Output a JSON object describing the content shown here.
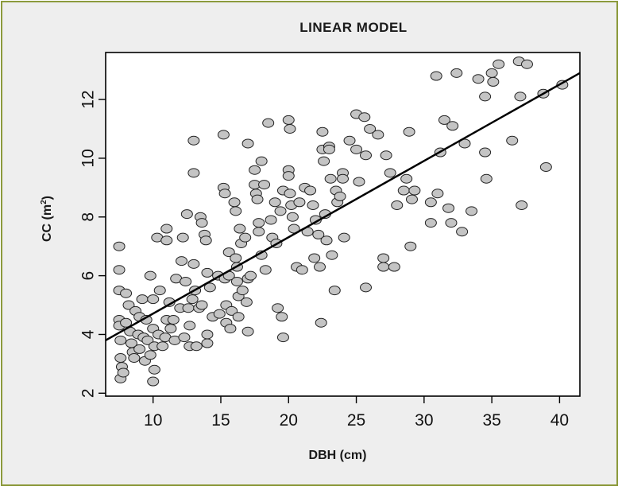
{
  "chart_data": {
    "type": "scatter",
    "title": "LINEAR MODEL",
    "xlabel": "DBH (cm)",
    "ylabel_main": "CC (m",
    "ylabel_sup": "2",
    "ylabel_close": ")",
    "xlim": [
      6.5,
      41.5
    ],
    "ylim": [
      1.9,
      13.6
    ],
    "x_ticks": [
      10,
      15,
      20,
      25,
      30,
      35,
      40
    ],
    "y_ticks": [
      2,
      4,
      6,
      8,
      10,
      12
    ],
    "grid": false,
    "legend": "none",
    "colors": {
      "point_fill": "#c4c4c4",
      "point_stroke": "#222222",
      "line": "#000000",
      "frame_border": "#8c9a3c",
      "background": "#eeeeee",
      "plot_bg": "#ffffff"
    },
    "fit_line": {
      "x": [
        6.5,
        41.5
      ],
      "y": [
        3.8,
        12.9
      ]
    },
    "points": [
      [
        7.5,
        7.0
      ],
      [
        7.5,
        6.2
      ],
      [
        7.5,
        5.5
      ],
      [
        7.5,
        4.5
      ],
      [
        7.5,
        4.3
      ],
      [
        7.6,
        3.8
      ],
      [
        7.6,
        3.2
      ],
      [
        7.7,
        2.9
      ],
      [
        7.6,
        2.5
      ],
      [
        7.8,
        2.7
      ],
      [
        8.0,
        5.4
      ],
      [
        8.2,
        5.0
      ],
      [
        8.0,
        4.4
      ],
      [
        8.3,
        4.1
      ],
      [
        8.4,
        3.7
      ],
      [
        8.5,
        3.4
      ],
      [
        8.6,
        3.2
      ],
      [
        8.7,
        4.8
      ],
      [
        8.9,
        4.0
      ],
      [
        9.0,
        3.5
      ],
      [
        9.0,
        4.6
      ],
      [
        9.2,
        5.2
      ],
      [
        9.3,
        3.9
      ],
      [
        9.4,
        3.1
      ],
      [
        9.5,
        4.5
      ],
      [
        9.6,
        3.8
      ],
      [
        9.8,
        6.0
      ],
      [
        9.8,
        3.3
      ],
      [
        10.0,
        5.2
      ],
      [
        10.0,
        4.2
      ],
      [
        10.0,
        2.4
      ],
      [
        10.1,
        2.8
      ],
      [
        10.1,
        3.6
      ],
      [
        10.3,
        7.3
      ],
      [
        10.4,
        4.0
      ],
      [
        10.5,
        5.5
      ],
      [
        10.7,
        3.6
      ],
      [
        10.9,
        3.9
      ],
      [
        11.0,
        4.5
      ],
      [
        11.0,
        7.6
      ],
      [
        11.0,
        7.2
      ],
      [
        11.2,
        5.1
      ],
      [
        11.3,
        4.2
      ],
      [
        11.5,
        4.5
      ],
      [
        11.6,
        3.8
      ],
      [
        11.7,
        5.9
      ],
      [
        12.0,
        4.9
      ],
      [
        12.1,
        6.5
      ],
      [
        12.2,
        7.3
      ],
      [
        12.3,
        3.9
      ],
      [
        12.4,
        5.8
      ],
      [
        12.5,
        8.1
      ],
      [
        12.6,
        4.9
      ],
      [
        12.7,
        4.3
      ],
      [
        12.7,
        3.6
      ],
      [
        12.9,
        5.2
      ],
      [
        13.0,
        10.6
      ],
      [
        13.0,
        9.5
      ],
      [
        13.0,
        6.4
      ],
      [
        13.1,
        5.5
      ],
      [
        13.2,
        3.6
      ],
      [
        13.4,
        4.9
      ],
      [
        13.5,
        8.0
      ],
      [
        13.6,
        7.8
      ],
      [
        13.6,
        5.0
      ],
      [
        13.8,
        7.4
      ],
      [
        13.9,
        7.2
      ],
      [
        14.0,
        6.1
      ],
      [
        14.0,
        4.0
      ],
      [
        14.0,
        3.7
      ],
      [
        14.2,
        5.6
      ],
      [
        14.4,
        4.6
      ],
      [
        14.8,
        6.0
      ],
      [
        14.9,
        4.7
      ],
      [
        15.2,
        10.8
      ],
      [
        15.2,
        9.0
      ],
      [
        15.3,
        8.8
      ],
      [
        15.3,
        5.9
      ],
      [
        15.4,
        5.0
      ],
      [
        15.4,
        4.4
      ],
      [
        15.6,
        6.8
      ],
      [
        15.6,
        6.0
      ],
      [
        15.7,
        4.2
      ],
      [
        15.8,
        4.8
      ],
      [
        16.0,
        8.5
      ],
      [
        16.1,
        8.2
      ],
      [
        16.1,
        6.6
      ],
      [
        16.2,
        6.3
      ],
      [
        16.2,
        5.8
      ],
      [
        16.3,
        5.3
      ],
      [
        16.3,
        4.6
      ],
      [
        16.4,
        7.6
      ],
      [
        16.5,
        7.1
      ],
      [
        16.6,
        5.5
      ],
      [
        16.8,
        7.3
      ],
      [
        16.9,
        5.1
      ],
      [
        17.0,
        10.5
      ],
      [
        17.0,
        5.9
      ],
      [
        17.0,
        4.1
      ],
      [
        17.2,
        6.0
      ],
      [
        17.5,
        9.6
      ],
      [
        17.5,
        9.1
      ],
      [
        17.6,
        8.8
      ],
      [
        17.7,
        8.6
      ],
      [
        17.8,
        7.8
      ],
      [
        17.8,
        7.5
      ],
      [
        18.0,
        9.9
      ],
      [
        18.0,
        6.7
      ],
      [
        18.2,
        9.1
      ],
      [
        18.3,
        6.2
      ],
      [
        18.5,
        11.2
      ],
      [
        18.7,
        7.9
      ],
      [
        18.8,
        7.3
      ],
      [
        19.0,
        8.5
      ],
      [
        19.1,
        7.1
      ],
      [
        19.2,
        4.9
      ],
      [
        19.4,
        8.2
      ],
      [
        19.5,
        4.6
      ],
      [
        19.6,
        3.9
      ],
      [
        19.6,
        8.9
      ],
      [
        20.0,
        11.3
      ],
      [
        20.0,
        9.6
      ],
      [
        20.0,
        9.4
      ],
      [
        20.1,
        8.8
      ],
      [
        20.1,
        11.0
      ],
      [
        20.2,
        8.4
      ],
      [
        20.3,
        8.0
      ],
      [
        20.4,
        7.6
      ],
      [
        20.6,
        6.3
      ],
      [
        20.8,
        8.5
      ],
      [
        21.0,
        6.2
      ],
      [
        21.2,
        9.0
      ],
      [
        21.4,
        7.5
      ],
      [
        21.6,
        8.9
      ],
      [
        21.8,
        8.4
      ],
      [
        21.9,
        6.6
      ],
      [
        22.0,
        7.9
      ],
      [
        22.2,
        7.4
      ],
      [
        22.3,
        6.3
      ],
      [
        22.4,
        4.4
      ],
      [
        22.5,
        10.9
      ],
      [
        22.5,
        10.3
      ],
      [
        22.6,
        9.9
      ],
      [
        22.7,
        8.1
      ],
      [
        22.8,
        7.2
      ],
      [
        23.0,
        10.4
      ],
      [
        23.0,
        10.3
      ],
      [
        23.1,
        9.3
      ],
      [
        23.2,
        6.7
      ],
      [
        23.4,
        5.5
      ],
      [
        23.5,
        8.9
      ],
      [
        23.6,
        8.5
      ],
      [
        23.8,
        8.7
      ],
      [
        24.0,
        9.5
      ],
      [
        24.0,
        9.3
      ],
      [
        24.1,
        7.3
      ],
      [
        24.5,
        10.6
      ],
      [
        25.0,
        11.5
      ],
      [
        25.0,
        10.3
      ],
      [
        25.2,
        9.2
      ],
      [
        25.6,
        11.4
      ],
      [
        25.7,
        10.1
      ],
      [
        25.7,
        5.6
      ],
      [
        26.0,
        11.0
      ],
      [
        26.6,
        10.8
      ],
      [
        27.0,
        6.6
      ],
      [
        27.0,
        6.3
      ],
      [
        27.2,
        10.1
      ],
      [
        27.5,
        9.5
      ],
      [
        27.8,
        6.3
      ],
      [
        28.0,
        8.4
      ],
      [
        28.5,
        8.9
      ],
      [
        28.7,
        9.3
      ],
      [
        28.9,
        10.9
      ],
      [
        29.0,
        7.0
      ],
      [
        29.1,
        8.6
      ],
      [
        29.3,
        8.9
      ],
      [
        30.5,
        7.8
      ],
      [
        30.5,
        8.5
      ],
      [
        30.9,
        12.8
      ],
      [
        31.0,
        8.8
      ],
      [
        31.2,
        10.2
      ],
      [
        31.5,
        11.3
      ],
      [
        31.8,
        8.3
      ],
      [
        32.0,
        7.8
      ],
      [
        32.1,
        11.1
      ],
      [
        32.4,
        12.9
      ],
      [
        32.8,
        7.5
      ],
      [
        33.0,
        10.5
      ],
      [
        33.5,
        8.2
      ],
      [
        34.0,
        12.7
      ],
      [
        34.5,
        12.1
      ],
      [
        34.5,
        10.2
      ],
      [
        34.6,
        9.3
      ],
      [
        35.0,
        12.9
      ],
      [
        35.1,
        12.6
      ],
      [
        35.5,
        13.2
      ],
      [
        36.5,
        10.6
      ],
      [
        37.0,
        13.3
      ],
      [
        37.1,
        12.1
      ],
      [
        37.2,
        8.4
      ],
      [
        37.6,
        13.2
      ],
      [
        38.8,
        12.2
      ],
      [
        39.0,
        9.7
      ],
      [
        40.2,
        12.5
      ]
    ]
  }
}
